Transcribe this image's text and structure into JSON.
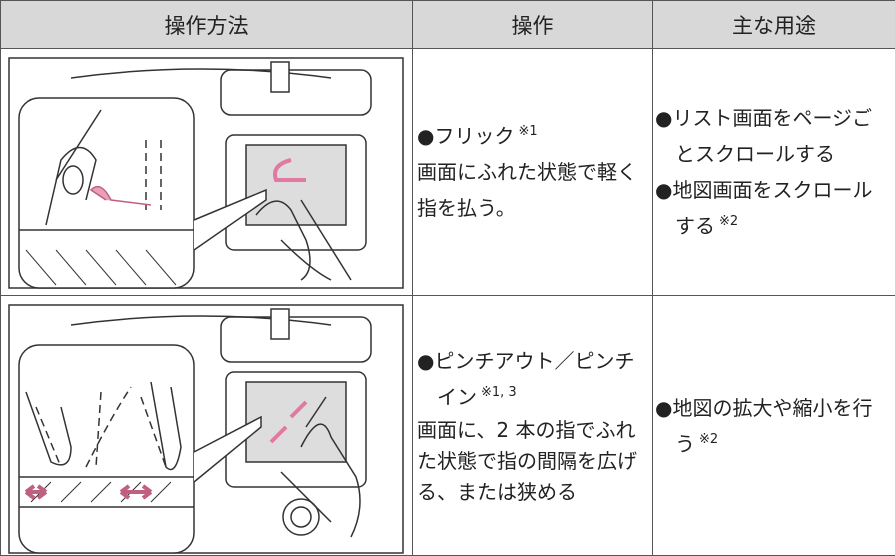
{
  "header": {
    "method": "操作方法",
    "operation": "操作",
    "uses": "主な用途"
  },
  "rows": [
    {
      "operation": {
        "name": "●フリック",
        "note": "※1",
        "description": "画面にふれた状態で軽く指を払う。"
      },
      "uses": [
        {
          "text": "●リスト画面をページごとスクロールする"
        },
        {
          "text": "●地図画面をスクロールする",
          "note": "※2"
        }
      ]
    },
    {
      "operation": {
        "name": "●ピンチアウト／ピンチイン",
        "note": "※1, 3",
        "description": "画面に、2 本の指でふれた状態で指の間隔を広げる、または狭める"
      },
      "uses": [
        {
          "text": "●地図の拡大や縮小を行う",
          "note": "※2"
        }
      ]
    }
  ]
}
